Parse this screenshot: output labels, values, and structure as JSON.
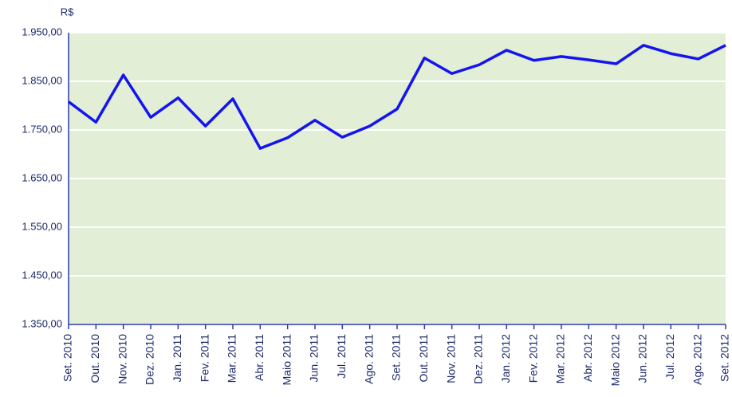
{
  "chart_data": {
    "type": "line",
    "y_label": "R$",
    "categories": [
      "Set. 2010",
      "Out. 2010",
      "Nov. 2010",
      "Dez. 2010",
      "Jan. 2011",
      "Fev. 2011",
      "Mar. 2011",
      "Abr. 2011",
      "Maio 2011",
      "Jun. 2011",
      "Jul. 2011",
      "Ago. 2011",
      "Set. 2011",
      "Out. 2011",
      "Nov. 2011",
      "Dez. 2011",
      "Jan. 2012",
      "Fev. 2012",
      "Mar. 2012",
      "Abr. 2012",
      "Maio 2012",
      "Jun. 2012",
      "Jul. 2012",
      "Ago. 2012",
      "Set. 2012"
    ],
    "values": [
      1808,
      1766,
      1863,
      1776,
      1816,
      1758,
      1814,
      1712,
      1734,
      1770,
      1735,
      1758,
      1793,
      1898,
      1866,
      1884,
      1914,
      1893,
      1901,
      1894,
      1886,
      1924,
      1907,
      1896,
      1924
    ],
    "color": "#1414f0",
    "ylim": [
      1350,
      1950
    ],
    "yticks": [
      {
        "value": 1350,
        "label": "1.350,00"
      },
      {
        "value": 1450,
        "label": "1.450,00"
      },
      {
        "value": 1550,
        "label": "1.550,00"
      },
      {
        "value": 1650,
        "label": "1.650,00"
      },
      {
        "value": 1750,
        "label": "1.750,00"
      },
      {
        "value": 1850,
        "label": "1.850,00"
      },
      {
        "value": 1950,
        "label": "1.950,00"
      }
    ],
    "grid": true
  }
}
